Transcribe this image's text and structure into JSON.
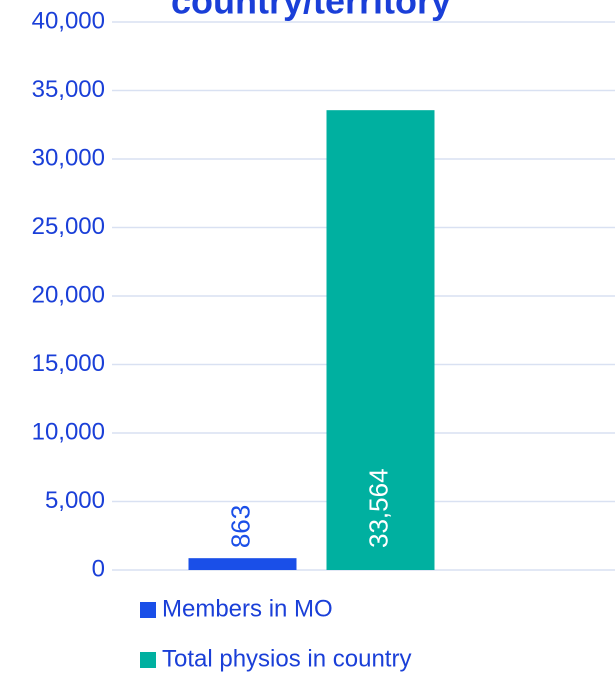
{
  "chart_data": {
    "type": "bar",
    "title": "country/territory",
    "categories": [
      null
    ],
    "series": [
      {
        "name": "Members in MO",
        "color": "#1a4fe8",
        "values": [
          863
        ],
        "value_labels": [
          "863"
        ]
      },
      {
        "name": "Total physios in country",
        "color": "#00b0a0",
        "values": [
          33564
        ],
        "value_labels": [
          "33,564"
        ]
      }
    ],
    "ylim": [
      0,
      40000
    ],
    "yticks": [
      0,
      {
        "value": 5000,
        "label": "5,000"
      },
      {
        "value": 10000,
        "label": "10,000"
      },
      {
        "value": 15000,
        "label": "15,000"
      },
      {
        "value": 20000,
        "label": "20,000"
      },
      {
        "value": 25000,
        "label": "25,000"
      },
      {
        "value": 30000,
        "label": "30,000"
      },
      {
        "value": 35000,
        "label": "35,000"
      },
      {
        "value": 40000,
        "label": "40,000"
      }
    ],
    "grid": true,
    "legend": "bottom"
  }
}
